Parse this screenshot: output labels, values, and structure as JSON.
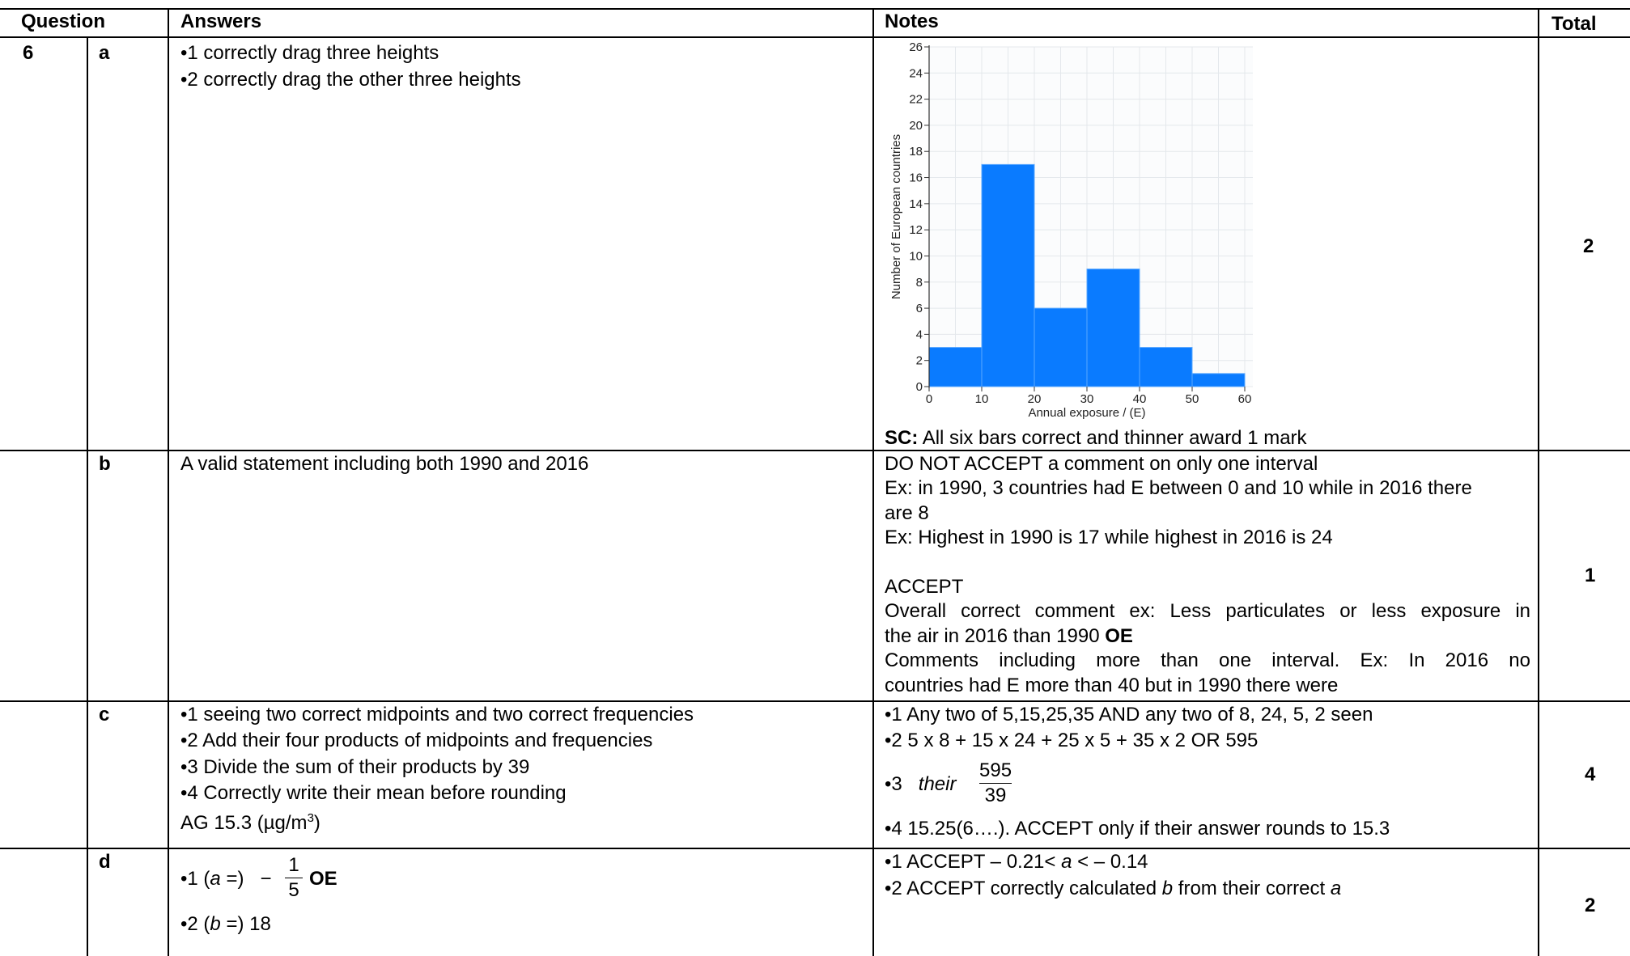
{
  "header": {
    "question": "Question",
    "answers": "Answers",
    "notes": "Notes",
    "total": "Total"
  },
  "rows": {
    "a": {
      "number": "6",
      "part": "a",
      "answers": [
        "1  correctly drag three heights",
        "2  correctly drag the other three heights"
      ],
      "sc_label": "SC:",
      "sc_text": " All six bars correct and thinner award 1 mark",
      "total": "2"
    },
    "b": {
      "part": "b",
      "answer": "A valid statement including both 1990 and 2016",
      "notes": [
        "DO NOT ACCEPT a comment on only one interval",
        "Ex: in 1990, 3 countries had E between 0 and 10 while in 2016 there",
        "are 8",
        "Ex: Highest in 1990 is 17 while highest in 2016 is 24",
        "ACCEPT",
        "Overall correct comment ex: Less particulates or less exposure in",
        "the air in 2016 than 1990 ",
        "OE",
        "Comments including more than one interval. Ex: In 2016 no",
        "countries had E more than 40 but in 1990 there were"
      ],
      "total": "1"
    },
    "c": {
      "part": "c",
      "answers": [
        "1  seeing two correct midpoints and two correct frequencies",
        "2  Add their four products of midpoints and frequencies",
        "3  Divide the sum of their products by 39",
        "4  Correctly write their mean before rounding"
      ],
      "ag_text": "AG 15.3 (µg/m",
      "ag_sup": "3",
      "ag_close": ")",
      "notes": {
        "n1": "1  Any two of 5,15,25,35 AND any two of 8, 24, 5, 2 seen",
        "n2": "2 5 x 8 + 15 x 24 + 25 x 5 + 35 x 2 OR 595",
        "n3_prefix": "3",
        "n3_their": "their",
        "n3_num": "595",
        "n3_den": "39",
        "n4": "4 15.25(6….). ACCEPT only if their answer rounds to 15.3"
      },
      "total": "4"
    },
    "d": {
      "part": "d",
      "a1_prefix": "1 (",
      "a1_var": "a",
      "a1_mid": " =)",
      "a1_minus": "−",
      "a1_num": "1",
      "a1_den": "5",
      "a1_oe": "OE",
      "a2_prefix": "2 (",
      "a2_var": "b",
      "a2_rest": " =) 18",
      "n1_prefix": "1  ACCEPT  – 0.21< ",
      "n1_var": "a",
      "n1_rest": " <  – 0.14",
      "n2_prefix": "2  ACCEPT correctly calculated ",
      "n2_var": "b",
      "n2_mid": " from their correct ",
      "n2_var2": "a",
      "total": "2"
    }
  },
  "chart_data": {
    "type": "bar",
    "xlabel": "Annual exposure / (E)",
    "ylabel": "Number of European countries",
    "bins": [
      [
        0,
        10
      ],
      [
        10,
        20
      ],
      [
        20,
        30
      ],
      [
        30,
        40
      ],
      [
        40,
        50
      ],
      [
        50,
        60
      ]
    ],
    "values": [
      3,
      17,
      6,
      9,
      3,
      1
    ],
    "xlim": [
      0,
      60
    ],
    "ylim": [
      0,
      26
    ],
    "xticks": [
      0,
      10,
      20,
      30,
      40,
      50,
      60
    ],
    "yticks": [
      0,
      2,
      4,
      6,
      8,
      10,
      12,
      14,
      16,
      18,
      20,
      22,
      24,
      26
    ],
    "grid": true,
    "bar_color": "#0a7bff"
  }
}
